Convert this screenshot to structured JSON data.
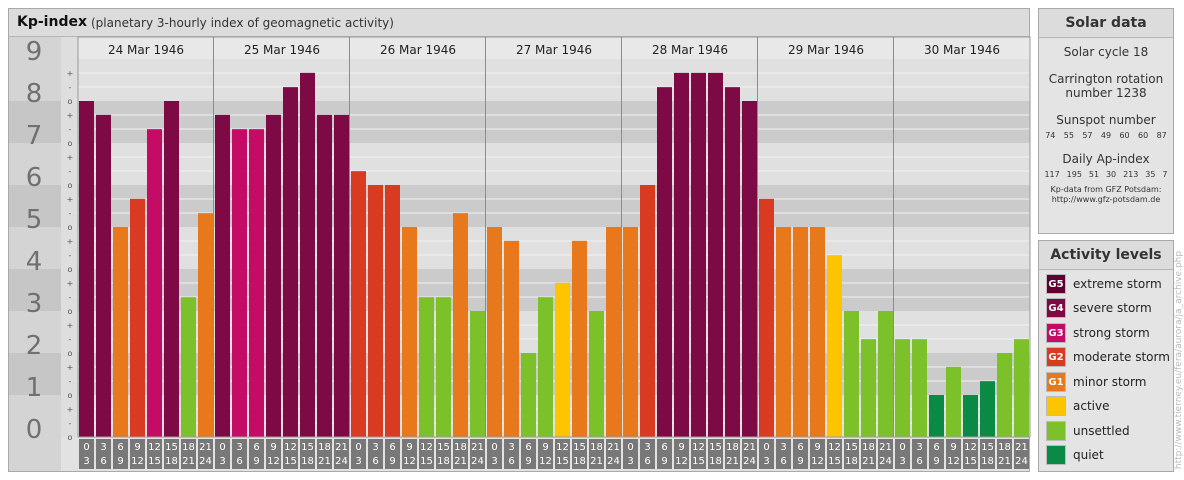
{
  "header": {
    "title": "Kp-index",
    "subtitle": "(planetary 3-hourly index of geomagnetic activity)"
  },
  "chart_data": {
    "type": "bar",
    "title": "Kp-index",
    "subtitle": "(planetary 3-hourly index of geomagnetic activity)",
    "ylim": [
      0,
      9
    ],
    "y_major_ticks": [
      "0",
      "1",
      "2",
      "3",
      "4",
      "5",
      "6",
      "7",
      "8",
      "9"
    ],
    "y_minor_labels": [
      "o",
      "-",
      "+"
    ],
    "grid": "on",
    "days": [
      "24 Mar 1946",
      "25 Mar 1946",
      "26 Mar 1946",
      "27 Mar 1946",
      "28 Mar 1946",
      "29 Mar 1946",
      "30 Mar 1946"
    ],
    "interval_labels": [
      [
        "0",
        "3"
      ],
      [
        "3",
        "6"
      ],
      [
        "6",
        "9"
      ],
      [
        "9",
        "12"
      ],
      [
        "12",
        "15"
      ],
      [
        "15",
        "18"
      ],
      [
        "18",
        "21"
      ],
      [
        "21",
        "24"
      ]
    ],
    "values": [
      [
        8.0,
        7.67,
        5.0,
        5.67,
        7.33,
        8.0,
        3.33,
        5.33
      ],
      [
        7.67,
        7.33,
        7.33,
        7.67,
        8.33,
        8.67,
        7.67,
        7.67
      ],
      [
        6.33,
        6.0,
        6.0,
        5.0,
        3.33,
        3.33,
        5.33,
        3.0
      ],
      [
        5.0,
        4.67,
        2.0,
        3.33,
        3.67,
        4.67,
        3.0,
        5.0
      ],
      [
        5.0,
        6.0,
        8.33,
        8.67,
        8.67,
        8.67,
        8.33,
        8.0
      ],
      [
        5.67,
        5.0,
        5.0,
        5.0,
        4.33,
        3.0,
        2.33,
        3.0
      ],
      [
        2.33,
        2.33,
        1.0,
        1.67,
        1.0,
        1.33,
        2.0,
        2.33
      ]
    ]
  },
  "solar_data": {
    "heading": "Solar data",
    "solar_cycle": "Solar cycle 18",
    "carrington_line1": "Carrington rotation",
    "carrington_line2": "number 1238",
    "sunspot_label": "Sunspot number",
    "sunspot_values": [
      "74",
      "55",
      "57",
      "49",
      "60",
      "60",
      "87"
    ],
    "ap_label": "Daily Ap-index",
    "ap_values": [
      "117",
      "195",
      "51",
      "30",
      "213",
      "35",
      "7"
    ],
    "credit_line1": "Kp-data from GFZ Potsdam:",
    "credit_line2": "http://www.gfz-potsdam.de"
  },
  "activity_levels": {
    "heading": "Activity levels",
    "items": [
      {
        "badge": "G5",
        "label": "extreme storm",
        "color": "#5f0030"
      },
      {
        "badge": "G4",
        "label": "severe storm",
        "color": "#7d0a44"
      },
      {
        "badge": "G3",
        "label": "strong storm",
        "color": "#c40b66"
      },
      {
        "badge": "G2",
        "label": "moderate storm",
        "color": "#d93a22"
      },
      {
        "badge": "G1",
        "label": "minor storm",
        "color": "#e8781c"
      },
      {
        "badge": "",
        "label": "active",
        "color": "#ffc400"
      },
      {
        "badge": "",
        "label": "unsettled",
        "color": "#7dc12a"
      },
      {
        "badge": "",
        "label": "quiet",
        "color": "#0a8a44"
      }
    ]
  },
  "watermark": "http://www.tierney.eu/fera/aurora/ja_archive.php"
}
